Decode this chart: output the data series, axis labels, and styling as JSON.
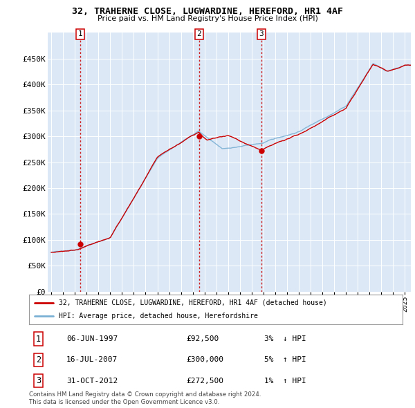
{
  "title": "32, TRAHERNE CLOSE, LUGWARDINE, HEREFORD, HR1 4AF",
  "subtitle": "Price paid vs. HM Land Registry's House Price Index (HPI)",
  "sale_label": "32, TRAHERNE CLOSE, LUGWARDINE, HEREFORD, HR1 4AF (detached house)",
  "hpi_label": "HPI: Average price, detached house, Herefordshire",
  "transactions": [
    {
      "num": 1,
      "date_num": 1997.44,
      "label_date": "06-JUN-1997",
      "price": 92500,
      "pct": "3%",
      "dir": "↓"
    },
    {
      "num": 2,
      "date_num": 2007.54,
      "label_date": "16-JUL-2007",
      "price": 300000,
      "pct": "5%",
      "dir": "↑"
    },
    {
      "num": 3,
      "date_num": 2012.83,
      "label_date": "31-OCT-2012",
      "price": 272500,
      "pct": "1%",
      "dir": "↑"
    }
  ],
  "copyright": "Contains HM Land Registry data © Crown copyright and database right 2024.\nThis data is licensed under the Open Government Licence v3.0.",
  "line_color_sale": "#cc0000",
  "line_color_hpi": "#7ab0d4",
  "background_plot": "#dce8f5",
  "background_fig": "#ffffff",
  "grid_color": "#ffffff",
  "ylim": [
    0,
    500000
  ],
  "ytick_vals": [
    0,
    50000,
    100000,
    150000,
    200000,
    250000,
    300000,
    350000,
    400000,
    450000
  ],
  "ytick_labels": [
    "£0",
    "£50K",
    "£100K",
    "£150K",
    "£200K",
    "£250K",
    "£300K",
    "£350K",
    "£400K",
    "£450K"
  ],
  "xstart_year": 1995,
  "xend_year": 2025
}
